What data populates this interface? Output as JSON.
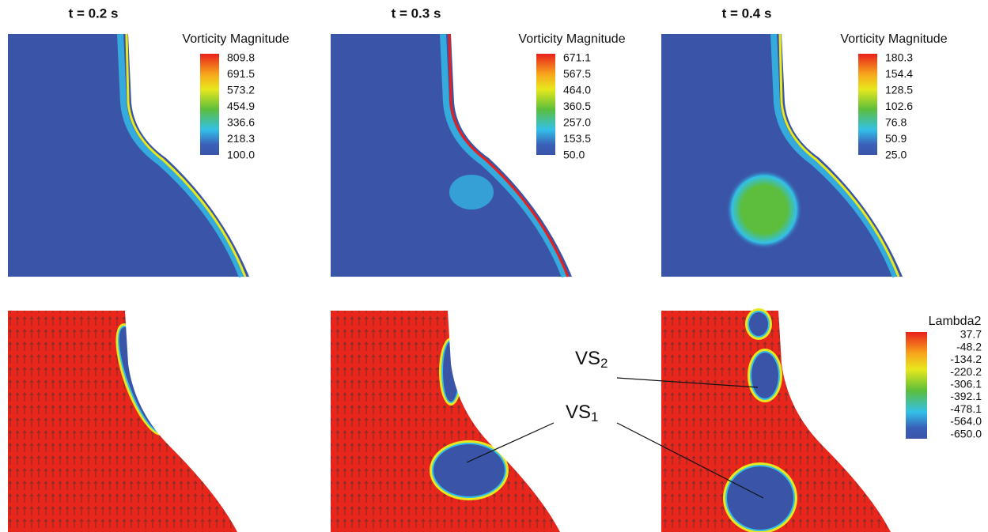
{
  "panels": [
    {
      "title": "t = 0.2 s",
      "colorbar": {
        "title": "Vorticity Magnitude",
        "labels": [
          "809.8",
          "691.5",
          "573.2",
          "454.9",
          "336.6",
          "218.3",
          "100.0"
        ]
      }
    },
    {
      "title": "t = 0.3 s",
      "colorbar": {
        "title": "Vorticity Magnitude",
        "labels": [
          "671.1",
          "567.5",
          "464.0",
          "360.5",
          "257.0",
          "153.5",
          "50.0"
        ]
      }
    },
    {
      "title": "t = 0.4 s",
      "colorbar": {
        "title": "Vorticity Magnitude",
        "labels": [
          "180.3",
          "154.4",
          "128.5",
          "102.6",
          "76.8",
          "50.9",
          "25.0"
        ]
      }
    }
  ],
  "lambda2_colorbar": {
    "title": "Lambda2",
    "labels": [
      "37.7",
      "-48.2",
      "-134.2",
      "-220.2",
      "-306.1",
      "-392.1",
      "-478.1",
      "-564.0",
      "-650.0"
    ]
  },
  "annotations": [
    {
      "text": "VS",
      "sub": "2"
    },
    {
      "text": "VS",
      "sub": "1"
    }
  ]
}
